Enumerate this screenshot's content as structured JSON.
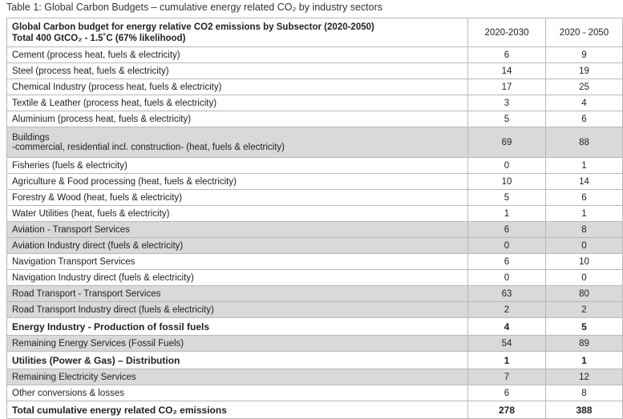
{
  "caption": "Table 1: Global Carbon Budgets – cumulative energy related CO₂ by industry sectors",
  "table": {
    "header": {
      "title": "Global Carbon budget for energy relative CO2 emissions by Subsector (2020-2050)",
      "subtitle": "Total 400 GtCO₂ - 1.5˚C (67% likelihood)",
      "columns": [
        "2020-2030",
        "2020 - 2050"
      ]
    },
    "rows": [
      {
        "label": "Cement (process heat, fuels & electricity)",
        "values": [
          6,
          9
        ]
      },
      {
        "label": "Steel (process heat, fuels & electricity)",
        "values": [
          14,
          19
        ]
      },
      {
        "label": "Chemical Industry (process heat, fuels & electricity)",
        "values": [
          17,
          25
        ]
      },
      {
        "label": "Textile & Leather (process heat, fuels & electricity)",
        "values": [
          3,
          4
        ]
      },
      {
        "label": "Aluminium (process heat, fuels & electricity)",
        "values": [
          5,
          6
        ]
      },
      {
        "label": "Buildings",
        "sublabel": "-commercial, residential incl. construction- (heat, fuels & electricity)",
        "values": [
          69,
          88
        ],
        "shaded": true
      },
      {
        "label": "Fisheries (fuels & electricity)",
        "values": [
          0,
          1
        ]
      },
      {
        "label": "Agriculture & Food processing (heat, fuels & electricity)",
        "values": [
          10,
          14
        ]
      },
      {
        "label": "Forestry & Wood (heat, fuels & electricity)",
        "values": [
          5,
          6
        ]
      },
      {
        "label": "Water Utilities (heat, fuels & electricity)",
        "values": [
          1,
          1
        ]
      },
      {
        "label": "Aviation - Transport Services",
        "values": [
          6,
          8
        ],
        "shaded": true
      },
      {
        "label": "Aviation Industry direct (fuels & electricity)",
        "values": [
          0,
          0
        ],
        "shaded": true
      },
      {
        "label": "Navigation Transport Services",
        "values": [
          6,
          10
        ]
      },
      {
        "label": "Navigation Industry direct (fuels & electricity)",
        "values": [
          0,
          0
        ]
      },
      {
        "label": "Road Transport - Transport Services",
        "values": [
          63,
          80
        ],
        "shaded": true
      },
      {
        "label": "Road Transport Industry direct (fuels & electricity)",
        "values": [
          2,
          2
        ],
        "shaded": true
      },
      {
        "label": "Energy Industry - Production of fossil fuels",
        "values": [
          4,
          5
        ],
        "bold": true
      },
      {
        "label": "Remaining Energy Services (Fossil Fuels)",
        "values": [
          54,
          89
        ],
        "shaded": true
      },
      {
        "label": "Utilities (Power & Gas) – Distribution",
        "values": [
          1,
          1
        ],
        "bold": true
      },
      {
        "label": "Remaining Electricity Services",
        "values": [
          7,
          12
        ],
        "shaded": true
      },
      {
        "label": "Other conversions & losses",
        "values": [
          6,
          8
        ]
      },
      {
        "label": "Total cumulative energy related CO₂ emissions",
        "values": [
          278,
          388
        ],
        "bold": true
      }
    ]
  }
}
